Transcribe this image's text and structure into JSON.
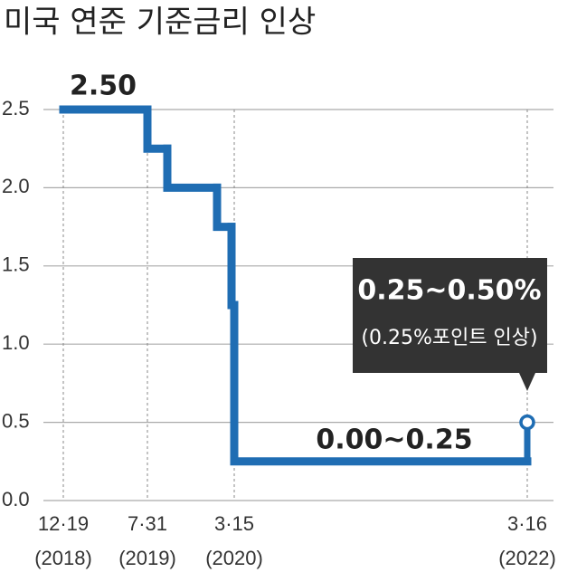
{
  "chart_data": {
    "type": "step",
    "title": "미국 연준 기준금리 인상",
    "categories": [
      "12·19",
      "7·31",
      null,
      null,
      null,
      "3·15",
      "3·16"
    ],
    "category_years": [
      "(2018)",
      "(2019)",
      null,
      null,
      null,
      "(2020)",
      "(2022)"
    ],
    "values": [
      2.5,
      2.25,
      2.0,
      1.75,
      1.25,
      0.25,
      0.5
    ],
    "color": "#1f6db3",
    "ylim": [
      0,
      2.5
    ],
    "yticks": [
      {
        "value": 0,
        "label": "0.0"
      },
      0.5,
      {
        "value": 1,
        "label": "1.0"
      },
      1.5,
      {
        "value": 2,
        "label": "2.0"
      },
      2.5
    ],
    "grid": true,
    "annotations": {
      "start": "2.50",
      "range": "0.00~0.25",
      "box_title": "0.25~0.50%",
      "box_note": "(0.25%포인트 인상)"
    }
  }
}
